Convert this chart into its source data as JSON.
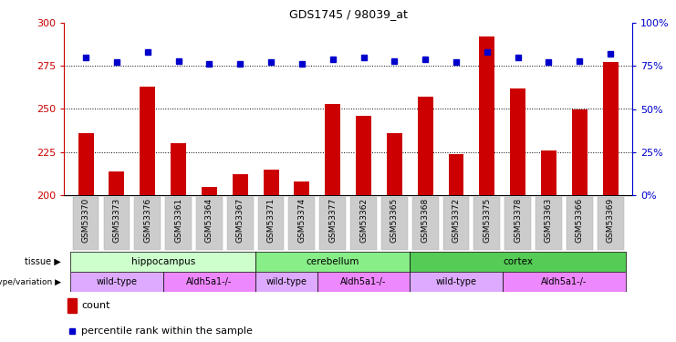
{
  "title": "GDS1745 / 98039_at",
  "samples": [
    "GSM53370",
    "GSM53373",
    "GSM53376",
    "GSM53361",
    "GSM53364",
    "GSM53367",
    "GSM53371",
    "GSM53374",
    "GSM53377",
    "GSM53362",
    "GSM53365",
    "GSM53368",
    "GSM53372",
    "GSM53375",
    "GSM53378",
    "GSM53363",
    "GSM53366",
    "GSM53369"
  ],
  "counts": [
    236,
    214,
    263,
    230,
    205,
    212,
    215,
    208,
    253,
    246,
    236,
    257,
    224,
    292,
    262,
    226,
    250,
    277
  ],
  "percentiles": [
    80,
    77,
    83,
    78,
    76,
    76,
    77,
    76,
    79,
    80,
    78,
    79,
    77,
    83,
    80,
    77,
    78,
    82
  ],
  "ylim_left": [
    200,
    300
  ],
  "ylim_right": [
    0,
    100
  ],
  "yticks_left": [
    200,
    225,
    250,
    275,
    300
  ],
  "yticks_right": [
    0,
    25,
    50,
    75,
    100
  ],
  "bar_color": "#cc0000",
  "dot_color": "#0000cc",
  "tissue_groups": [
    {
      "label": "hippocampus",
      "start": 0,
      "end": 6
    },
    {
      "label": "cerebellum",
      "start": 6,
      "end": 11
    },
    {
      "label": "cortex",
      "start": 11,
      "end": 18
    }
  ],
  "tissue_colors": {
    "hippocampus": "#ccffcc",
    "cerebellum": "#88ee88",
    "cortex": "#55cc55"
  },
  "genotype_groups": [
    {
      "label": "wild-type",
      "start": 0,
      "end": 3
    },
    {
      "label": "Aldh5a1-/-",
      "start": 3,
      "end": 6
    },
    {
      "label": "wild-type",
      "start": 6,
      "end": 8
    },
    {
      "label": "Aldh5a1-/-",
      "start": 8,
      "end": 11
    },
    {
      "label": "wild-type",
      "start": 11,
      "end": 14
    },
    {
      "label": "Aldh5a1-/-",
      "start": 14,
      "end": 18
    }
  ],
  "geno_colors": {
    "wild-type": "#ddaaff",
    "Aldh5a1-/-": "#ee88ff"
  },
  "tissue_label": "tissue",
  "genotype_label": "genotype/variation",
  "legend_count": "count",
  "legend_percentile": "percentile rank within the sample",
  "bg_color": "#ffffff",
  "sample_label_bg": "#cccccc",
  "tick_label_fontsize": 7,
  "bar_width": 0.5
}
